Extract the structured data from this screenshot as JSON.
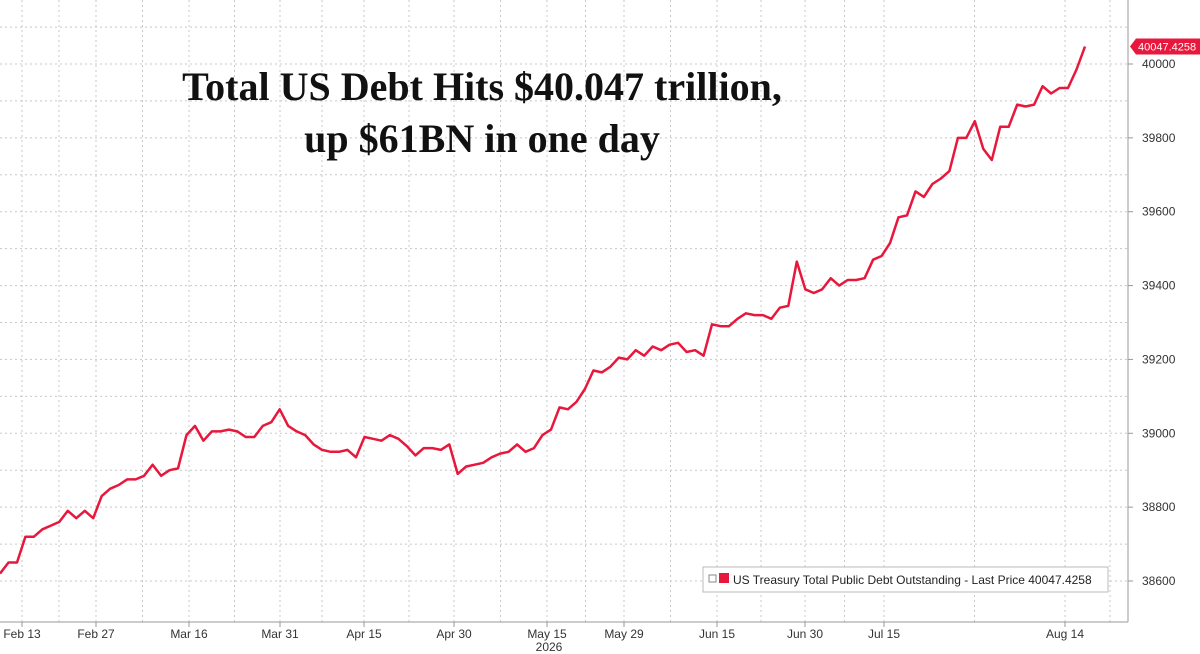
{
  "chart_data": {
    "type": "line",
    "title_lines": [
      "Total US Debt Hits $40.047 trillion,",
      "up $61BN in one day"
    ],
    "year_label": "2026",
    "x_ticks": [
      "Feb 13",
      "Feb 27",
      "Mar 16",
      "Mar 31",
      "Apr 15",
      "Apr 30",
      "May 15",
      "May 29",
      "Jun 15",
      "Jun 30",
      "Jul 15",
      "Aug 14"
    ],
    "y_ticks": [
      "38600",
      "38800",
      "39000",
      "39200",
      "39400",
      "39600",
      "39800",
      "40000"
    ],
    "ylim": [
      38550,
      40150
    ],
    "last_value_label": "40047.4258",
    "legend_label": "US Treasury Total Public Debt Outstanding - Last Price 40047.4258",
    "grid": true,
    "legend_position": "bottom-right",
    "series": [
      {
        "color": "#e8173c",
        "values": [
          38620,
          38650,
          38650,
          38720,
          38720,
          38740,
          38750,
          38760,
          38790,
          38770,
          38790,
          38770,
          38830,
          38850,
          38860,
          38875,
          38875,
          38885,
          38915,
          38885,
          38900,
          38905,
          38995,
          39020,
          38980,
          39005,
          39005,
          39010,
          39005,
          38990,
          38990,
          39020,
          39030,
          39065,
          39020,
          39005,
          38995,
          38970,
          38955,
          38950,
          38950,
          38955,
          38935,
          38990,
          38985,
          38980,
          38995,
          38985,
          38965,
          38940,
          38960,
          38960,
          38955,
          38970,
          38890,
          38910,
          38915,
          38920,
          38935,
          38945,
          38950,
          38970,
          38950,
          38960,
          38995,
          39010,
          39070,
          39065,
          39085,
          39120,
          39170,
          39165,
          39180,
          39205,
          39200,
          39225,
          39210,
          39235,
          39225,
          39240,
          39245,
          39220,
          39225,
          39210,
          39295,
          39290,
          39290,
          39310,
          39325,
          39320,
          39320,
          39310,
          39340,
          39345,
          39465,
          39390,
          39380,
          39390,
          39420,
          39400,
          39415,
          39415,
          39420,
          39470,
          39480,
          39515,
          39585,
          39590,
          39655,
          39640,
          39675,
          39690,
          39710,
          39800,
          39800,
          39845,
          39770,
          39740,
          39830,
          39830,
          39890,
          39885,
          39890,
          39940,
          39920,
          39935,
          39935,
          39985,
          40047.4
        ]
      }
    ]
  }
}
